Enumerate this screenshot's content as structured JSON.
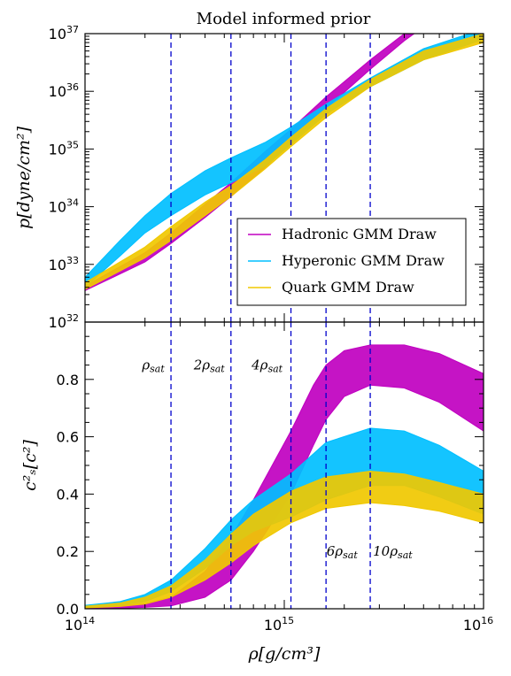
{
  "chart_data": {
    "type": "area",
    "title": "Model informed prior",
    "xlabel": "ρ[g/cm³]",
    "xscale": "log",
    "xlim": [
      100000000000000.0,
      1e+16
    ],
    "x_ticks": [
      {
        "base": "10",
        "exp": "14"
      },
      {
        "base": "10",
        "exp": "15"
      },
      {
        "base": "10",
        "exp": "16"
      }
    ],
    "vlines_x": [
      270000000000000.0,
      540000000000000.0,
      1080000000000000.0,
      1620000000000000.0,
      2700000000000000.0
    ],
    "vline_color": "#0000cc",
    "panels": [
      {
        "name": "pressure",
        "ylabel": "p[dyne/cm²]",
        "yscale": "log",
        "ylim": [
          1e+32,
          1e+37
        ],
        "y_ticks": [
          {
            "base": "10",
            "exp": "37"
          },
          {
            "base": "10",
            "exp": "36"
          },
          {
            "base": "10",
            "exp": "35"
          },
          {
            "base": "10",
            "exp": "34"
          },
          {
            "base": "10",
            "exp": "33"
          },
          {
            "base": "10",
            "exp": "32"
          }
        ],
        "series": [
          {
            "name": "Hadronic GMM Draw",
            "color": "#c000c0",
            "x": [
              100000000000000.0,
              200000000000000.0,
              270000000000000.0,
              400000000000000.0,
              540000000000000.0,
              800000000000000.0,
              1080000000000000.0,
              1620000000000000.0,
              2700000000000000.0,
              4000000000000000.0,
              7000000000000000.0
            ],
            "lower": [
              3.5e+32,
              1.1e+33,
              2.3e+33,
              6.5e+33,
              1.5e+34,
              4.8e+34,
              1.3e+35,
              5e+35,
              2.4e+36,
              7.5e+36,
              3e+37
            ],
            "upper": [
              4.2e+32,
              1.6e+33,
              3.5e+33,
              1.1e+34,
              2.6e+34,
              9e+34,
              2.2e+35,
              8e+35,
              3.5e+36,
              1e+37,
              4e+37
            ]
          },
          {
            "name": "Hyperonic GMM Draw",
            "color": "#00bfff",
            "x": [
              100000000000000.0,
              150000000000000.0,
              200000000000000.0,
              270000000000000.0,
              400000000000000.0,
              540000000000000.0,
              800000000000000.0,
              1080000000000000.0,
              1620000000000000.0,
              2700000000000000.0,
              5000000000000000.0,
              1e+16
            ],
            "lower": [
              4e+32,
              1.4e+33,
              3.5e+33,
              7e+33,
              1.6e+34,
              2.6e+34,
              5e+34,
              1.2e+35,
              4e+35,
              1.2e+36,
              3.5e+36,
              8e+36
            ],
            "upper": [
              6e+32,
              2.6e+33,
              7e+33,
              1.7e+34,
              4.2e+34,
              7e+34,
              1.3e+35,
              2.4e+35,
              6e+35,
              1.7e+36,
              5.5e+36,
              1.2e+37
            ]
          },
          {
            "name": "Quark GMM Draw",
            "color": "#f0c800",
            "x": [
              100000000000000.0,
              200000000000000.0,
              270000000000000.0,
              400000000000000.0,
              540000000000000.0,
              800000000000000.0,
              1080000000000000.0,
              1620000000000000.0,
              2700000000000000.0,
              5000000000000000.0,
              1e+16
            ],
            "lower": [
              3.7e+32,
              1.3e+33,
              2.6e+33,
              7e+33,
              1.5e+34,
              4.5e+34,
              1.1e+35,
              3.5e+35,
              1.2e+36,
              3.5e+36,
              7e+36
            ],
            "upper": [
              4.8e+32,
              2e+33,
              4.5e+33,
              1.2e+34,
              2.3e+34,
              6.5e+34,
              1.6e+35,
              5e+35,
              1.6e+36,
              5e+36,
              1e+37
            ]
          }
        ],
        "legend": {
          "placement": "lower-right",
          "entries": [
            "Hadronic GMM Draw",
            "Hyperonic GMM Draw",
            "Quark GMM Draw"
          ]
        }
      },
      {
        "name": "sound-speed",
        "ylabel": "c²ₛ[c²]",
        "yscale": "linear",
        "ylim": [
          0.0,
          1.0
        ],
        "y_ticks": [
          "0.0",
          "0.2",
          "0.4",
          "0.6",
          "0.8"
        ],
        "series": [
          {
            "name": "Hadronic GMM Draw",
            "color": "#c000c0",
            "x": [
              100000000000000.0,
              150000000000000.0,
              200000000000000.0,
              270000000000000.0,
              400000000000000.0,
              540000000000000.0,
              700000000000000.0,
              1080000000000000.0,
              1400000000000000.0,
              1620000000000000.0,
              2000000000000000.0,
              2700000000000000.0,
              4000000000000000.0,
              6000000000000000.0,
              1e+16
            ],
            "lower": [
              0.0,
              0.002,
              0.005,
              0.01,
              0.04,
              0.1,
              0.2,
              0.4,
              0.57,
              0.66,
              0.74,
              0.78,
              0.77,
              0.72,
              0.62
            ],
            "upper": [
              0.006,
              0.01,
              0.018,
              0.04,
              0.13,
              0.25,
              0.38,
              0.62,
              0.78,
              0.85,
              0.9,
              0.92,
              0.92,
              0.89,
              0.82
            ]
          },
          {
            "name": "Hyperonic GMM Draw",
            "color": "#00bfff",
            "x": [
              100000000000000.0,
              150000000000000.0,
              200000000000000.0,
              270000000000000.0,
              400000000000000.0,
              540000000000000.0,
              700000000000000.0,
              1080000000000000.0,
              1620000000000000.0,
              2700000000000000.0,
              4000000000000000.0,
              6000000000000000.0,
              1e+16
            ],
            "lower": [
              0.004,
              0.012,
              0.025,
              0.06,
              0.14,
              0.22,
              0.27,
              0.32,
              0.38,
              0.43,
              0.43,
              0.39,
              0.33
            ],
            "upper": [
              0.012,
              0.025,
              0.05,
              0.1,
              0.21,
              0.31,
              0.38,
              0.47,
              0.58,
              0.63,
              0.62,
              0.57,
              0.48
            ]
          },
          {
            "name": "Quark GMM Draw",
            "color": "#f0c800",
            "x": [
              100000000000000.0,
              150000000000000.0,
              200000000000000.0,
              270000000000000.0,
              400000000000000.0,
              540000000000000.0,
              700000000000000.0,
              1080000000000000.0,
              1620000000000000.0,
              2700000000000000.0,
              4000000000000000.0,
              6000000000000000.0,
              1e+16
            ],
            "lower": [
              0.003,
              0.008,
              0.016,
              0.04,
              0.1,
              0.16,
              0.22,
              0.3,
              0.35,
              0.37,
              0.36,
              0.34,
              0.3
            ],
            "upper": [
              0.009,
              0.02,
              0.04,
              0.08,
              0.17,
              0.26,
              0.33,
              0.41,
              0.46,
              0.48,
              0.47,
              0.44,
              0.4
            ]
          }
        ],
        "annotations": [
          {
            "main": "ρ",
            "sub": "sat",
            "x": 220000000000000.0,
            "y": 0.85
          },
          {
            "main": "2ρ",
            "sub": "sat",
            "x": 420000000000000.0,
            "y": 0.85
          },
          {
            "main": "4ρ",
            "sub": "sat",
            "x": 820000000000000.0,
            "y": 0.85
          },
          {
            "main": "6ρ",
            "sub": "sat",
            "x": 1950000000000000.0,
            "y": 0.2
          },
          {
            "main": "10ρ",
            "sub": "sat",
            "x": 3500000000000000.0,
            "y": 0.2
          }
        ]
      }
    ]
  }
}
